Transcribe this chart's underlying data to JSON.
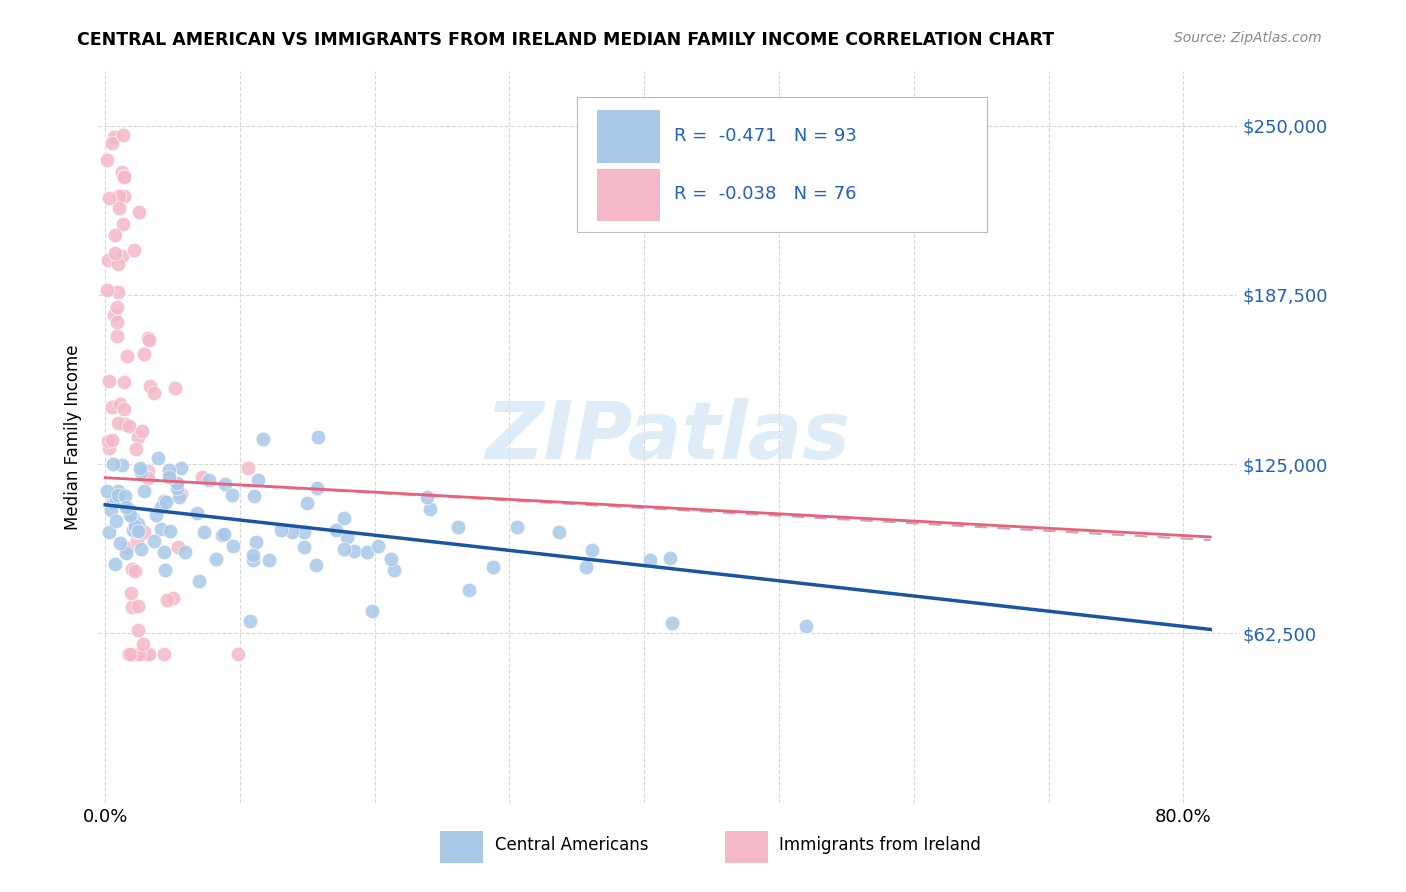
{
  "title": "CENTRAL AMERICAN VS IMMIGRANTS FROM IRELAND MEDIAN FAMILY INCOME CORRELATION CHART",
  "source": "Source: ZipAtlas.com",
  "ylabel": "Median Family Income",
  "y_tick_values": [
    62500,
    125000,
    187500,
    250000
  ],
  "y_tick_labels": [
    "$62,500",
    "$125,000",
    "$187,500",
    "$250,000"
  ],
  "ylim": [
    0,
    270000
  ],
  "xlim": [
    -0.005,
    0.84
  ],
  "blue_color": "#a8c8e8",
  "pink_color": "#f4b8c8",
  "blue_line_color": "#1a56a0",
  "pink_line_color": "#e8607a",
  "pink_dash_color": "#d0a0b0",
  "watermark_color": "#d0e4f4",
  "legend_text_color": "#2060c0",
  "grid_color": "#d8d8d8",
  "legend_r_blue": "-0.471",
  "legend_n_blue": "93",
  "legend_r_pink": "-0.038",
  "legend_n_pink": "76",
  "blue_seed": 42,
  "pink_seed": 123
}
